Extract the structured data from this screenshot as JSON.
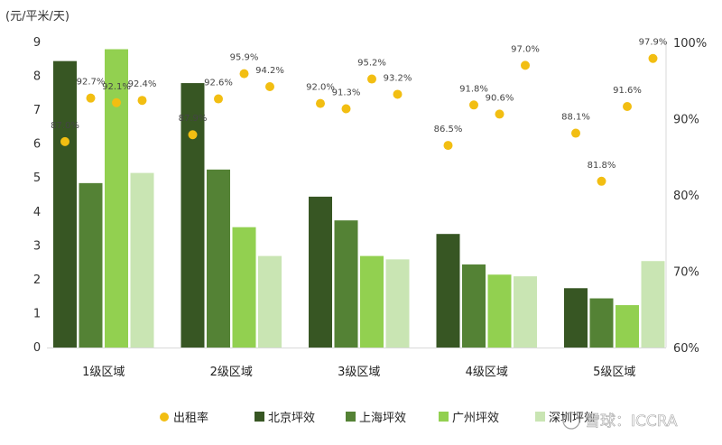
{
  "chart_data": {
    "type": "bar",
    "left_axis_unit": "(元/平米/天)",
    "categories": [
      "1级区域",
      "2级区域",
      "3级区域",
      "4级区域",
      "5级区域"
    ],
    "ylim": [
      0,
      9
    ],
    "yticks": [
      0,
      1,
      2,
      3,
      4,
      5,
      6,
      7,
      8,
      9
    ],
    "y2lim": [
      60,
      100
    ],
    "y2ticks": [
      "60%",
      "70%",
      "80%",
      "90%",
      "100%"
    ],
    "grid": false,
    "legend_position": "bottom",
    "series": [
      {
        "name": "北京坪效",
        "type": "bar",
        "axis": "left",
        "color": "#375623",
        "values": [
          8.45,
          7.8,
          4.45,
          3.35,
          1.75
        ]
      },
      {
        "name": "上海坪效",
        "type": "bar",
        "axis": "left",
        "color": "#548235",
        "values": [
          4.85,
          5.25,
          3.75,
          2.45,
          1.45
        ]
      },
      {
        "name": "广州坪效",
        "type": "bar",
        "axis": "left",
        "color": "#92d050",
        "values": [
          8.8,
          3.55,
          2.7,
          2.15,
          1.25
        ]
      },
      {
        "name": "深圳坪效",
        "type": "bar",
        "axis": "left",
        "color": "#c9e5b3",
        "values": [
          5.15,
          2.7,
          2.6,
          2.1,
          2.55
        ]
      },
      {
        "name": "出租率",
        "type": "scatter",
        "axis": "right",
        "color": "#f2be12",
        "values": [
          [
            87.0,
            92.7,
            92.1,
            92.4
          ],
          [
            87.9,
            92.6,
            95.9,
            94.2
          ],
          [
            92.0,
            91.3,
            95.2,
            93.2
          ],
          [
            86.5,
            91.8,
            90.6,
            97.0
          ],
          [
            88.1,
            81.8,
            91.6,
            97.9
          ]
        ],
        "labels": [
          [
            "87.0%",
            "92.7%",
            "92.1%",
            "92.4%"
          ],
          [
            "87.9%",
            "92.6%",
            "95.9%",
            "94.2%"
          ],
          [
            "92.0%",
            "91.3%",
            "95.2%",
            "93.2%"
          ],
          [
            "86.5%",
            "91.8%",
            "90.6%",
            "97.0%"
          ],
          [
            "88.1%",
            "81.8%",
            "91.6%",
            "97.9%"
          ]
        ]
      }
    ],
    "legend": [
      "出租率",
      "北京坪效",
      "上海坪效",
      "广州坪效",
      "深圳坪效"
    ]
  },
  "watermark": "雪球：ICCRA"
}
